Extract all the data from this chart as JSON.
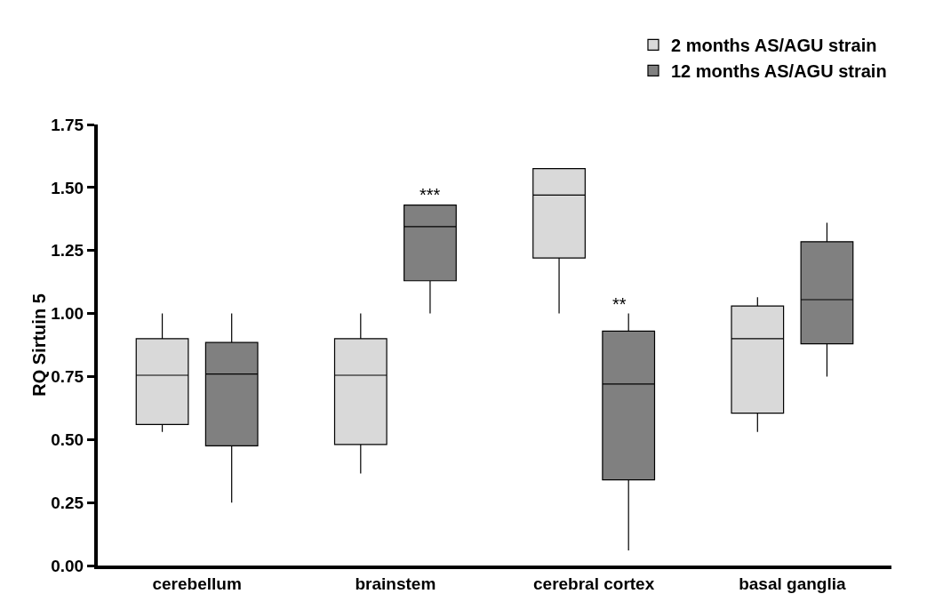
{
  "chart_data": {
    "type": "box",
    "ylabel": "RQ Sirtuin 5",
    "categories": [
      "cerebellum",
      "brainstem",
      "cerebral cortex",
      "basal ganglia"
    ],
    "series": [
      {
        "name": "2 months AS/AGU strain",
        "color": "#d9d9d9",
        "boxes": [
          {
            "low": 0.53,
            "q1": 0.56,
            "median": 0.755,
            "q3": 0.9,
            "high": 1.0
          },
          {
            "low": 0.365,
            "q1": 0.48,
            "median": 0.755,
            "q3": 0.9,
            "high": 1.0
          },
          {
            "low": 1.0,
            "q1": 1.22,
            "median": 1.47,
            "q3": 1.575,
            "high": 1.575
          },
          {
            "low": 0.53,
            "q1": 0.605,
            "median": 0.9,
            "q3": 1.03,
            "high": 1.065
          }
        ]
      },
      {
        "name": "12 months AS/AGU strain",
        "color": "#808080",
        "boxes": [
          {
            "low": 0.25,
            "q1": 0.475,
            "median": 0.76,
            "q3": 0.885,
            "high": 1.0
          },
          {
            "low": 1.0,
            "q1": 1.13,
            "median": 1.345,
            "q3": 1.43,
            "high": 1.43
          },
          {
            "low": 0.06,
            "q1": 0.34,
            "median": 0.72,
            "q3": 0.93,
            "high": 1.0
          },
          {
            "low": 0.75,
            "q1": 0.88,
            "median": 1.055,
            "q3": 1.285,
            "high": 1.36
          }
        ]
      }
    ],
    "ylim": [
      0,
      1.75
    ],
    "yticks": [
      {
        "value": 0,
        "label": "0.00"
      },
      {
        "value": 0.25,
        "label": "0.25"
      },
      {
        "value": 0.5,
        "label": "0.50"
      },
      {
        "value": 0.75,
        "label": "0.75"
      },
      {
        "value": 1,
        "label": "1.00"
      },
      {
        "value": 1.25,
        "label": "1.25"
      },
      {
        "value": 1.5,
        "label": "1.50"
      },
      {
        "value": 1.75,
        "label": "1.75"
      }
    ],
    "annotations": [
      "***",
      "**"
    ],
    "grid": false,
    "legend": "top right"
  }
}
